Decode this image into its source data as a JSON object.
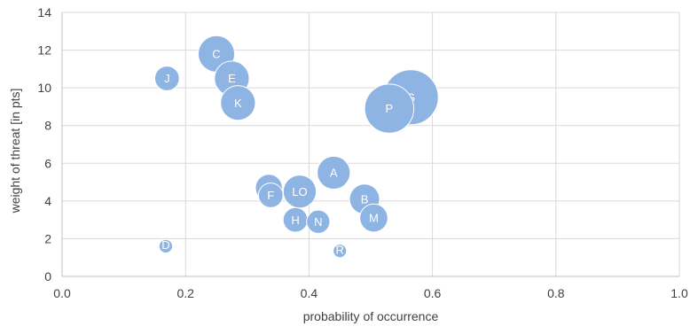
{
  "chart_data": {
    "type": "scatter",
    "subtype": "bubble",
    "title": "",
    "xlabel": "probability of occurrence",
    "ylabel": "weight of threat [in pts]",
    "xlim": [
      0,
      1.0
    ],
    "ylim": [
      0,
      14
    ],
    "x_ticks": [
      "0.0",
      "0.2",
      "0.4",
      "0.6",
      "0.8",
      "1.0"
    ],
    "y_ticks": [
      "0",
      "2",
      "4",
      "6",
      "8",
      "10",
      "12",
      "14"
    ],
    "grid": true,
    "legend": "none",
    "color": "#8db4e2",
    "points": [
      {
        "label": "C",
        "x": 0.25,
        "y": 11.8,
        "size": 2.2
      },
      {
        "label": "J",
        "x": 0.17,
        "y": 10.5,
        "size": 1.0
      },
      {
        "label": "E",
        "x": 0.275,
        "y": 10.5,
        "size": 2.0
      },
      {
        "label": "K",
        "x": 0.285,
        "y": 9.2,
        "size": 2.0
      },
      {
        "label": "G",
        "x": 0.565,
        "y": 9.5,
        "size": 5.0
      },
      {
        "label": "P",
        "x": 0.53,
        "y": 8.9,
        "size": 4.0
      },
      {
        "label": "A",
        "x": 0.44,
        "y": 5.5,
        "size": 1.8
      },
      {
        "label": "I",
        "x": 0.335,
        "y": 4.7,
        "size": 1.2
      },
      {
        "label": "F",
        "x": 0.338,
        "y": 4.3,
        "size": 1.0
      },
      {
        "label": "LO",
        "x": 0.385,
        "y": 4.5,
        "size": 1.8
      },
      {
        "label": "B",
        "x": 0.49,
        "y": 4.1,
        "size": 1.5
      },
      {
        "label": "H",
        "x": 0.378,
        "y": 3.0,
        "size": 1.0
      },
      {
        "label": "N",
        "x": 0.415,
        "y": 2.9,
        "size": 0.9
      },
      {
        "label": "M",
        "x": 0.505,
        "y": 3.1,
        "size": 1.3
      },
      {
        "label": "D",
        "x": 0.168,
        "y": 1.6,
        "size": 0.3
      },
      {
        "label": "R",
        "x": 0.45,
        "y": 1.35,
        "size": 0.3
      }
    ]
  }
}
